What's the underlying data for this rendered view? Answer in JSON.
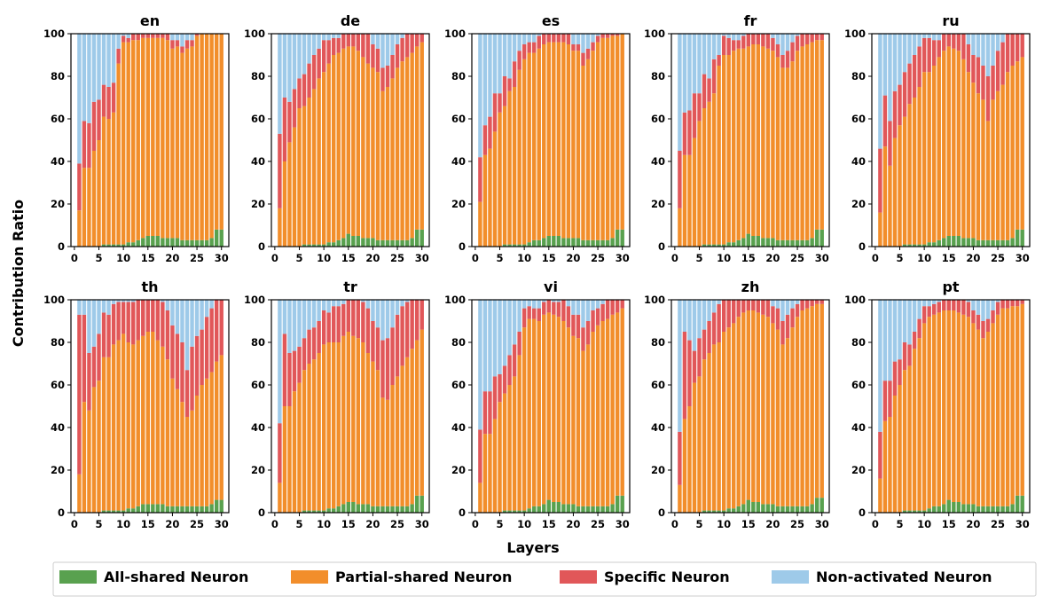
{
  "figure": {
    "ylabel": "Contribution Ratio",
    "xlabel": "Layers"
  },
  "colors": {
    "all_shared": "#59a14f",
    "partial_shared": "#f28e2b",
    "specific": "#e15759",
    "non_activated": "#9ecae9"
  },
  "legend": [
    {
      "key": "all_shared",
      "label": "All-shared Neuron"
    },
    {
      "key": "partial_shared",
      "label": "Partial-shared Neuron"
    },
    {
      "key": "specific",
      "label": "Specific Neuron"
    },
    {
      "key": "non_activated",
      "label": "Non-activated Neuron"
    }
  ],
  "chart_data": [
    {
      "type": "bar",
      "stacked": true,
      "title": "en",
      "x": [
        1,
        2,
        3,
        4,
        5,
        6,
        7,
        8,
        9,
        10,
        11,
        12,
        13,
        14,
        15,
        16,
        17,
        18,
        19,
        20,
        21,
        22,
        23,
        24,
        25,
        26,
        27,
        28,
        29,
        30
      ],
      "xticks": [
        0,
        5,
        10,
        15,
        20,
        25,
        30
      ],
      "ylim": [
        0,
        100
      ],
      "yticks": [
        0,
        20,
        40,
        60,
        80,
        100
      ],
      "shared": [
        0,
        0,
        0,
        0,
        0,
        1,
        1,
        1,
        1,
        1,
        2,
        2,
        3,
        4,
        5,
        5,
        5,
        4,
        4,
        4,
        4,
        3,
        3,
        3,
        3,
        3,
        3,
        4,
        8,
        8
      ],
      "cum_partial": [
        17,
        37,
        37,
        45,
        50,
        61,
        60,
        63,
        86,
        96,
        96,
        97,
        97,
        98,
        98,
        98,
        98,
        98,
        97,
        93,
        94,
        91,
        93,
        94,
        99,
        100,
        100,
        100,
        100,
        100
      ],
      "cum_specific": [
        39,
        59,
        58,
        68,
        69,
        76,
        75,
        77,
        93,
        99,
        98,
        100,
        100,
        100,
        100,
        100,
        100,
        100,
        100,
        97,
        97,
        94,
        97,
        97,
        100,
        100,
        100,
        100,
        100,
        100
      ]
    },
    {
      "type": "bar",
      "stacked": true,
      "title": "de",
      "x": [
        1,
        2,
        3,
        4,
        5,
        6,
        7,
        8,
        9,
        10,
        11,
        12,
        13,
        14,
        15,
        16,
        17,
        18,
        19,
        20,
        21,
        22,
        23,
        24,
        25,
        26,
        27,
        28,
        29,
        30
      ],
      "xticks": [
        0,
        5,
        10,
        15,
        20,
        25,
        30
      ],
      "ylim": [
        0,
        100
      ],
      "yticks": [
        0,
        20,
        40,
        60,
        80,
        100
      ],
      "shared": [
        0,
        0,
        0,
        0,
        0,
        1,
        1,
        1,
        1,
        1,
        2,
        2,
        3,
        4,
        6,
        5,
        5,
        4,
        4,
        4,
        3,
        3,
        3,
        3,
        3,
        3,
        3,
        4,
        8,
        8
      ],
      "cum_partial": [
        18,
        40,
        49,
        56,
        65,
        66,
        70,
        74,
        79,
        82,
        86,
        90,
        91,
        93,
        94,
        94,
        92,
        89,
        86,
        84,
        82,
        73,
        75,
        79,
        84,
        87,
        89,
        91,
        94,
        96
      ],
      "cum_specific": [
        53,
        70,
        68,
        74,
        79,
        81,
        86,
        90,
        93,
        97,
        97,
        98,
        98,
        100,
        100,
        100,
        100,
        100,
        100,
        95,
        93,
        84,
        85,
        90,
        95,
        98,
        100,
        100,
        100,
        100
      ]
    },
    {
      "type": "bar",
      "stacked": true,
      "title": "es",
      "x": [
        1,
        2,
        3,
        4,
        5,
        6,
        7,
        8,
        9,
        10,
        11,
        12,
        13,
        14,
        15,
        16,
        17,
        18,
        19,
        20,
        21,
        22,
        23,
        24,
        25,
        26,
        27,
        28,
        29,
        30
      ],
      "xticks": [
        0,
        5,
        10,
        15,
        20,
        25,
        30
      ],
      "ylim": [
        0,
        100
      ],
      "yticks": [
        0,
        20,
        40,
        60,
        80,
        100
      ],
      "shared": [
        0,
        0,
        0,
        0,
        0,
        1,
        1,
        1,
        1,
        1,
        2,
        3,
        3,
        4,
        5,
        5,
        5,
        4,
        4,
        4,
        4,
        3,
        3,
        3,
        3,
        3,
        3,
        4,
        8,
        8
      ],
      "cum_partial": [
        21,
        43,
        46,
        54,
        63,
        66,
        73,
        75,
        83,
        88,
        91,
        91,
        93,
        95,
        96,
        96,
        96,
        96,
        95,
        92,
        92,
        85,
        88,
        92,
        96,
        98,
        98,
        99,
        99,
        100
      ],
      "cum_specific": [
        42,
        57,
        61,
        72,
        72,
        80,
        79,
        87,
        92,
        95,
        96,
        96,
        99,
        100,
        100,
        100,
        100,
        100,
        100,
        95,
        95,
        91,
        93,
        96,
        99,
        100,
        100,
        100,
        100,
        100
      ]
    },
    {
      "type": "bar",
      "stacked": true,
      "title": "fr",
      "x": [
        1,
        2,
        3,
        4,
        5,
        6,
        7,
        8,
        9,
        10,
        11,
        12,
        13,
        14,
        15,
        16,
        17,
        18,
        19,
        20,
        21,
        22,
        23,
        24,
        25,
        26,
        27,
        28,
        29,
        30
      ],
      "xticks": [
        0,
        5,
        10,
        15,
        20,
        25,
        30
      ],
      "ylim": [
        0,
        100
      ],
      "yticks": [
        0,
        20,
        40,
        60,
        80,
        100
      ],
      "shared": [
        0,
        0,
        0,
        0,
        0,
        1,
        1,
        1,
        1,
        1,
        2,
        2,
        3,
        4,
        6,
        5,
        5,
        4,
        4,
        4,
        3,
        3,
        3,
        3,
        3,
        3,
        3,
        4,
        8,
        8
      ],
      "cum_partial": [
        18,
        43,
        43,
        51,
        59,
        65,
        68,
        72,
        85,
        90,
        90,
        92,
        93,
        93,
        94,
        95,
        95,
        94,
        93,
        92,
        89,
        84,
        84,
        87,
        92,
        94,
        95,
        96,
        97,
        97
      ],
      "cum_specific": [
        45,
        63,
        64,
        72,
        72,
        81,
        79,
        88,
        90,
        99,
        98,
        97,
        97,
        99,
        100,
        100,
        100,
        100,
        100,
        98,
        95,
        90,
        92,
        96,
        99,
        100,
        100,
        100,
        100,
        100
      ]
    },
    {
      "type": "bar",
      "stacked": true,
      "title": "ru",
      "x": [
        1,
        2,
        3,
        4,
        5,
        6,
        7,
        8,
        9,
        10,
        11,
        12,
        13,
        14,
        15,
        16,
        17,
        18,
        19,
        20,
        21,
        22,
        23,
        24,
        25,
        26,
        27,
        28,
        29,
        30
      ],
      "xticks": [
        0,
        5,
        10,
        15,
        20,
        25,
        30
      ],
      "ylim": [
        0,
        100
      ],
      "yticks": [
        0,
        20,
        40,
        60,
        80,
        100
      ],
      "shared": [
        0,
        0,
        0,
        0,
        0,
        1,
        1,
        1,
        1,
        1,
        2,
        2,
        3,
        4,
        5,
        5,
        5,
        4,
        4,
        4,
        3,
        3,
        3,
        3,
        3,
        3,
        3,
        4,
        8,
        8
      ],
      "cum_partial": [
        16,
        47,
        38,
        51,
        57,
        61,
        67,
        70,
        75,
        82,
        82,
        85,
        89,
        92,
        94,
        93,
        92,
        88,
        82,
        77,
        72,
        69,
        59,
        69,
        73,
        76,
        82,
        85,
        87,
        89
      ],
      "cum_specific": [
        46,
        71,
        59,
        73,
        76,
        82,
        86,
        90,
        94,
        98,
        98,
        97,
        97,
        100,
        100,
        100,
        100,
        100,
        95,
        90,
        89,
        85,
        80,
        85,
        92,
        96,
        100,
        100,
        100,
        100
      ]
    },
    {
      "type": "bar",
      "stacked": true,
      "title": "th",
      "x": [
        1,
        2,
        3,
        4,
        5,
        6,
        7,
        8,
        9,
        10,
        11,
        12,
        13,
        14,
        15,
        16,
        17,
        18,
        19,
        20,
        21,
        22,
        23,
        24,
        25,
        26,
        27,
        28,
        29,
        30
      ],
      "xticks": [
        0,
        5,
        10,
        15,
        20,
        25,
        30
      ],
      "ylim": [
        0,
        100
      ],
      "yticks": [
        0,
        20,
        40,
        60,
        80,
        100
      ],
      "shared": [
        0,
        0,
        0,
        0,
        0,
        1,
        1,
        1,
        1,
        1,
        2,
        2,
        3,
        4,
        4,
        4,
        4,
        4,
        3,
        3,
        3,
        3,
        3,
        3,
        3,
        3,
        3,
        4,
        6,
        6
      ],
      "cum_partial": [
        18,
        52,
        48,
        59,
        62,
        73,
        73,
        79,
        81,
        84,
        80,
        79,
        81,
        83,
        85,
        85,
        81,
        78,
        72,
        63,
        58,
        52,
        45,
        48,
        55,
        60,
        63,
        66,
        71,
        74
      ],
      "cum_specific": [
        93,
        93,
        75,
        78,
        84,
        94,
        93,
        98,
        99,
        99,
        99,
        99,
        100,
        100,
        100,
        100,
        100,
        99,
        95,
        88,
        84,
        80,
        67,
        78,
        83,
        86,
        92,
        96,
        100,
        100
      ]
    },
    {
      "type": "bar",
      "stacked": true,
      "title": "tr",
      "x": [
        1,
        2,
        3,
        4,
        5,
        6,
        7,
        8,
        9,
        10,
        11,
        12,
        13,
        14,
        15,
        16,
        17,
        18,
        19,
        20,
        21,
        22,
        23,
        24,
        25,
        26,
        27,
        28,
        29,
        30
      ],
      "xticks": [
        0,
        5,
        10,
        15,
        20,
        25,
        30
      ],
      "ylim": [
        0,
        100
      ],
      "yticks": [
        0,
        20,
        40,
        60,
        80,
        100
      ],
      "shared": [
        0,
        0,
        0,
        0,
        0,
        1,
        1,
        1,
        1,
        1,
        2,
        2,
        3,
        4,
        5,
        5,
        4,
        4,
        4,
        3,
        3,
        3,
        3,
        3,
        3,
        3,
        3,
        4,
        8,
        8
      ],
      "cum_partial": [
        14,
        50,
        50,
        57,
        61,
        67,
        70,
        72,
        75,
        79,
        80,
        80,
        80,
        83,
        85,
        83,
        82,
        80,
        75,
        71,
        67,
        54,
        53,
        60,
        64,
        69,
        73,
        77,
        81,
        86
      ],
      "cum_specific": [
        42,
        84,
        75,
        76,
        78,
        82,
        86,
        87,
        90,
        95,
        94,
        97,
        97,
        98,
        100,
        100,
        100,
        99,
        96,
        90,
        87,
        81,
        82,
        87,
        93,
        97,
        99,
        100,
        100,
        100
      ]
    },
    {
      "type": "bar",
      "stacked": true,
      "title": "vi",
      "x": [
        1,
        2,
        3,
        4,
        5,
        6,
        7,
        8,
        9,
        10,
        11,
        12,
        13,
        14,
        15,
        16,
        17,
        18,
        19,
        20,
        21,
        22,
        23,
        24,
        25,
        26,
        27,
        28,
        29,
        30
      ],
      "xticks": [
        0,
        5,
        10,
        15,
        20,
        25,
        30
      ],
      "ylim": [
        0,
        100
      ],
      "yticks": [
        0,
        20,
        40,
        60,
        80,
        100
      ],
      "shared": [
        0,
        0,
        0,
        0,
        0,
        1,
        1,
        1,
        1,
        1,
        2,
        3,
        3,
        4,
        6,
        5,
        5,
        4,
        4,
        4,
        3,
        3,
        3,
        3,
        3,
        3,
        3,
        4,
        8,
        8
      ],
      "cum_partial": [
        14,
        37,
        37,
        44,
        52,
        56,
        60,
        64,
        74,
        87,
        91,
        91,
        90,
        93,
        94,
        93,
        92,
        90,
        87,
        83,
        82,
        76,
        79,
        85,
        88,
        90,
        91,
        93,
        94,
        96
      ],
      "cum_specific": [
        39,
        57,
        57,
        64,
        65,
        69,
        74,
        79,
        85,
        96,
        97,
        96,
        96,
        99,
        100,
        99,
        99,
        100,
        97,
        93,
        93,
        87,
        90,
        95,
        96,
        98,
        100,
        100,
        100,
        100
      ]
    },
    {
      "type": "bar",
      "stacked": true,
      "title": "zh",
      "x": [
        1,
        2,
        3,
        4,
        5,
        6,
        7,
        8,
        9,
        10,
        11,
        12,
        13,
        14,
        15,
        16,
        17,
        18,
        19,
        20,
        21,
        22,
        23,
        24,
        25,
        26,
        27,
        28,
        29,
        30
      ],
      "xticks": [
        0,
        5,
        10,
        15,
        20,
        25,
        30
      ],
      "ylim": [
        0,
        100
      ],
      "yticks": [
        0,
        20,
        40,
        60,
        80,
        100
      ],
      "shared": [
        0,
        0,
        0,
        0,
        0,
        1,
        1,
        1,
        1,
        1,
        2,
        2,
        3,
        4,
        6,
        5,
        5,
        4,
        4,
        4,
        3,
        3,
        3,
        3,
        3,
        3,
        3,
        4,
        7,
        7
      ],
      "cum_partial": [
        13,
        44,
        50,
        61,
        64,
        72,
        75,
        79,
        80,
        85,
        87,
        89,
        92,
        94,
        95,
        95,
        94,
        93,
        92,
        89,
        86,
        79,
        82,
        87,
        92,
        95,
        96,
        97,
        98,
        98
      ],
      "cum_specific": [
        38,
        85,
        81,
        76,
        82,
        86,
        90,
        94,
        98,
        100,
        100,
        100,
        100,
        100,
        100,
        100,
        100,
        100,
        100,
        97,
        96,
        90,
        93,
        96,
        98,
        100,
        100,
        100,
        100,
        100
      ]
    },
    {
      "type": "bar",
      "stacked": true,
      "title": "pt",
      "x": [
        1,
        2,
        3,
        4,
        5,
        6,
        7,
        8,
        9,
        10,
        11,
        12,
        13,
        14,
        15,
        16,
        17,
        18,
        19,
        20,
        21,
        22,
        23,
        24,
        25,
        26,
        27,
        28,
        29,
        30
      ],
      "xticks": [
        0,
        5,
        10,
        15,
        20,
        25,
        30
      ],
      "ylim": [
        0,
        100
      ],
      "yticks": [
        0,
        20,
        40,
        60,
        80,
        100
      ],
      "shared": [
        0,
        0,
        0,
        0,
        0,
        1,
        1,
        1,
        1,
        1,
        2,
        3,
        3,
        4,
        6,
        5,
        5,
        4,
        4,
        4,
        3,
        3,
        3,
        3,
        3,
        3,
        3,
        4,
        8,
        8
      ],
      "cum_partial": [
        16,
        43,
        45,
        55,
        60,
        67,
        69,
        77,
        82,
        89,
        92,
        93,
        94,
        95,
        95,
        95,
        94,
        93,
        92,
        89,
        86,
        82,
        85,
        89,
        93,
        96,
        96,
        97,
        97,
        98
      ],
      "cum_specific": [
        38,
        62,
        62,
        71,
        72,
        80,
        79,
        85,
        91,
        97,
        97,
        98,
        99,
        100,
        100,
        100,
        100,
        100,
        99,
        95,
        93,
        90,
        91,
        95,
        99,
        100,
        100,
        100,
        100,
        100
      ]
    }
  ]
}
